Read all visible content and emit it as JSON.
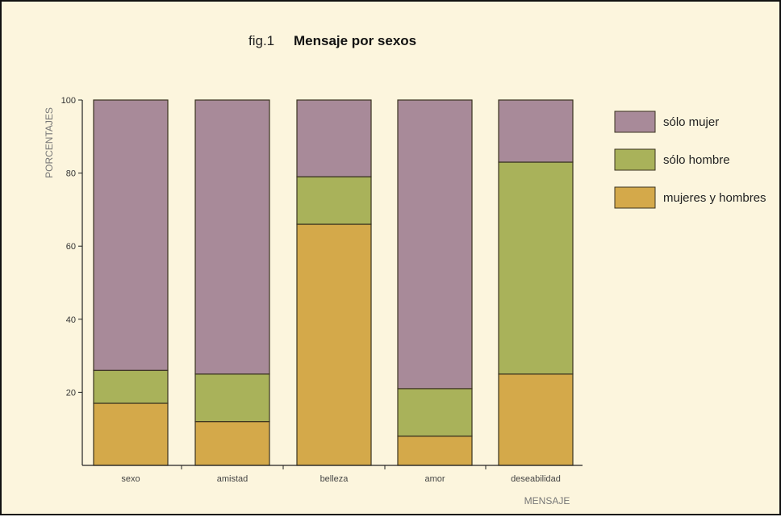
{
  "chart_data": {
    "type": "bar",
    "stacked": true,
    "title_prefix": "fig.1",
    "title": "Mensaje por sexos",
    "xlabel": "MENSAJE",
    "ylabel": "PORCENTAJES",
    "ylim": [
      0,
      100
    ],
    "yticks": [
      "20",
      "40",
      "60",
      "80",
      "100"
    ],
    "grid": false,
    "legend_position": "right",
    "categories": [
      "sexo",
      "amistad",
      "belleza",
      "amor",
      "deseabilidad"
    ],
    "series": [
      {
        "name": "mujeres y hombres",
        "color": "#d4a94a",
        "values": [
          17,
          12,
          66,
          8,
          25
        ]
      },
      {
        "name": "sólo hombre",
        "color": "#a9b25a",
        "values": [
          9,
          13,
          13,
          13,
          58
        ]
      },
      {
        "name": "sólo mujer",
        "color": "#a88a99",
        "values": [
          74,
          75,
          21,
          79,
          17
        ]
      }
    ],
    "legend_order": [
      "sólo mujer",
      "sólo hombre",
      "mujeres y hombres"
    ]
  }
}
